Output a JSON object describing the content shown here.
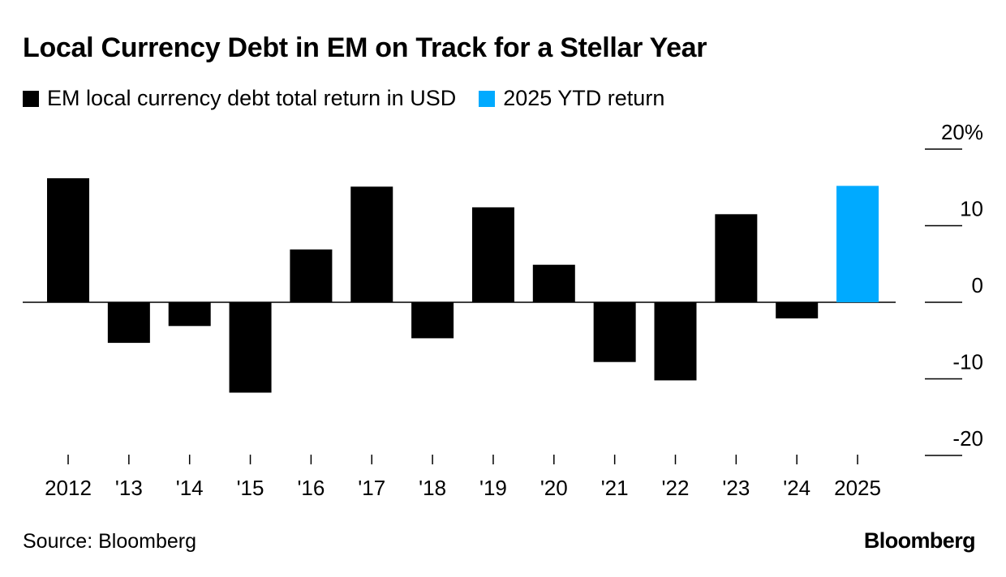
{
  "title": "Local Currency Debt in EM on Track for a Stellar Year",
  "legend": [
    {
      "label": "EM local currency debt total return in USD",
      "color": "#000000"
    },
    {
      "label": "2025 YTD return",
      "color": "#00aaff"
    }
  ],
  "chart_data": {
    "type": "bar",
    "categories": [
      "2012",
      "'13",
      "'14",
      "'15",
      "'16",
      "'17",
      "'18",
      "'19",
      "'20",
      "'21",
      "'22",
      "'23",
      "'24",
      "2025"
    ],
    "values": [
      16.2,
      -5.3,
      -3.1,
      -11.8,
      6.9,
      15.1,
      -4.7,
      12.4,
      4.9,
      -7.8,
      -10.2,
      11.5,
      -2.1,
      15.2
    ],
    "series_names": [
      "EM local currency debt total return in USD",
      "EM local currency debt total return in USD",
      "EM local currency debt total return in USD",
      "EM local currency debt total return in USD",
      "EM local currency debt total return in USD",
      "EM local currency debt total return in USD",
      "EM local currency debt total return in USD",
      "EM local currency debt total return in USD",
      "EM local currency debt total return in USD",
      "EM local currency debt total return in USD",
      "EM local currency debt total return in USD",
      "EM local currency debt total return in USD",
      "EM local currency debt total return in USD",
      "2025 YTD return"
    ],
    "colors": {
      "main": "#000000",
      "highlight": "#00aaff"
    },
    "y_ticks": [
      20,
      10,
      0,
      -10,
      -20
    ],
    "y_tick_labels": [
      "20%",
      "10",
      "0",
      "-10",
      "-20"
    ],
    "ylim": [
      -20,
      20
    ],
    "grid": false,
    "xlabel": "",
    "ylabel": ""
  },
  "source": "Source: Bloomberg",
  "brand": "Bloomberg"
}
